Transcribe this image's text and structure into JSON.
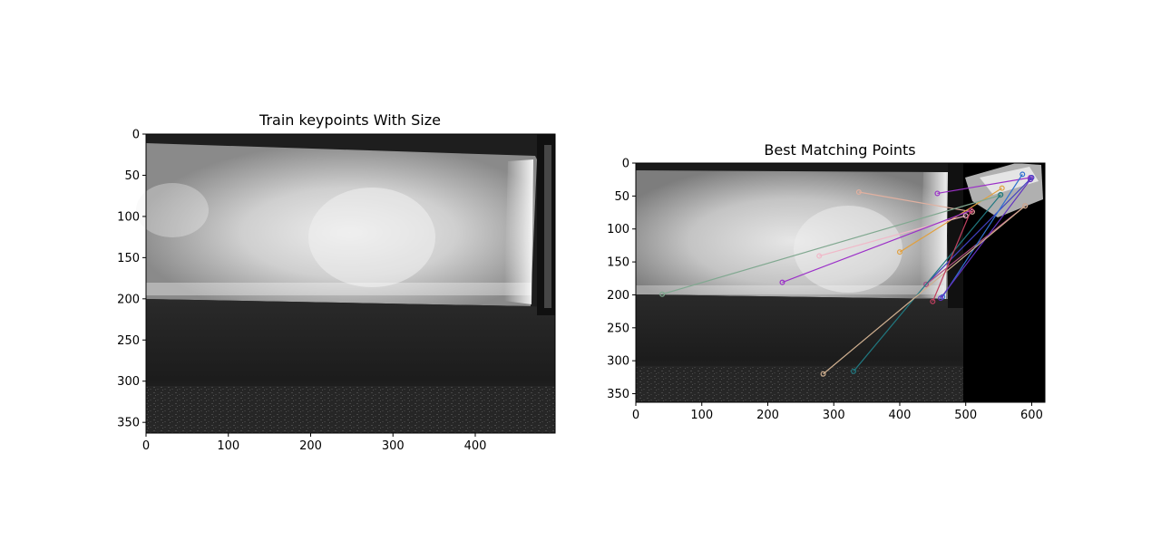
{
  "chart_data": [
    {
      "type": "image",
      "title": "Train keypoints With Size",
      "xlim": [
        0,
        497
      ],
      "ylim": [
        363,
        0
      ],
      "xticks": [
        0,
        100,
        200,
        300,
        400
      ],
      "yticks": [
        0,
        50,
        100,
        150,
        200,
        250,
        300,
        350
      ]
    },
    {
      "type": "image",
      "title": "Best Matching Points",
      "xlim": [
        0,
        620
      ],
      "ylim": [
        363,
        0
      ],
      "xticks": [
        0,
        100,
        200,
        300,
        400,
        500,
        600
      ],
      "yticks": [
        0,
        50,
        100,
        150,
        200,
        250,
        300,
        350
      ],
      "matches": [
        {
          "from": [
            338,
            44
          ],
          "to": [
            510,
            74
          ],
          "color": "#e0b0a0"
        },
        {
          "from": [
            457,
            46
          ],
          "to": [
            598,
            22
          ],
          "color": "#9b30c8"
        },
        {
          "from": [
            400,
            135
          ],
          "to": [
            555,
            38
          ],
          "color": "#e0a040"
        },
        {
          "from": [
            278,
            141
          ],
          "to": [
            500,
            80
          ],
          "color": "#f0b8c8"
        },
        {
          "from": [
            222,
            181
          ],
          "to": [
            508,
            72
          ],
          "color": "#9b30c8"
        },
        {
          "from": [
            40,
            199
          ],
          "to": [
            552,
            49
          ],
          "color": "#80a890"
        },
        {
          "from": [
            440,
            184
          ],
          "to": [
            600,
            22
          ],
          "color": "#4040c0"
        },
        {
          "from": [
            440,
            184
          ],
          "to": [
            590,
            65
          ],
          "color": "#b05080"
        },
        {
          "from": [
            465,
            203
          ],
          "to": [
            586,
            17
          ],
          "color": "#3070d0"
        },
        {
          "from": [
            462,
            205
          ],
          "to": [
            598,
            25
          ],
          "color": "#6030c0"
        },
        {
          "from": [
            330,
            316
          ],
          "to": [
            553,
            48
          ],
          "color": "#207880"
        },
        {
          "from": [
            284,
            320
          ],
          "to": [
            590,
            65
          ],
          "color": "#d0b090"
        },
        {
          "from": [
            450,
            210
          ],
          "to": [
            508,
            72
          ],
          "color": "#c04060"
        }
      ]
    }
  ]
}
